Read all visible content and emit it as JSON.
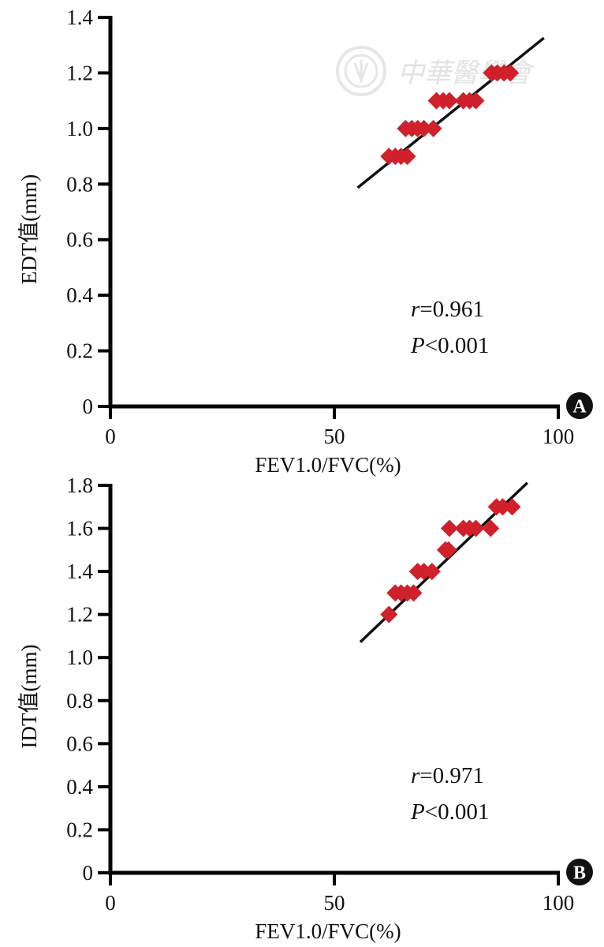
{
  "watermark": {
    "text": "中華醫學會",
    "icon": "seal-icon"
  },
  "colors": {
    "marker": "#d0202b",
    "line": "#111111",
    "axis": "#000000"
  },
  "chart_data": [
    {
      "type": "scatter",
      "panel_label": "A",
      "xlabel": "FEV1.0/FVC(%)",
      "ylabel": "EDT值(mm)",
      "xlim": [
        0,
        100
      ],
      "ylim": [
        0,
        1.4
      ],
      "x_ticks": [
        "0",
        "50",
        "100"
      ],
      "y_ticks": [
        "0",
        "0.2",
        "0.4",
        "0.6",
        "0.8",
        "1.0",
        "1.2",
        "1.4"
      ],
      "stats": {
        "r_symbol": "r",
        "r_value": "=0.961",
        "p_symbol": "P",
        "p_value": "<0.001"
      },
      "points": [
        {
          "x": 62.2,
          "y": 0.9
        },
        {
          "x": 63.6,
          "y": 0.9
        },
        {
          "x": 64.9,
          "y": 0.9
        },
        {
          "x": 66.3,
          "y": 0.9
        },
        {
          "x": 65.9,
          "y": 1.0
        },
        {
          "x": 67.3,
          "y": 1.0
        },
        {
          "x": 68.6,
          "y": 1.0
        },
        {
          "x": 70.0,
          "y": 1.0
        },
        {
          "x": 72.1,
          "y": 1.0
        },
        {
          "x": 72.8,
          "y": 1.1
        },
        {
          "x": 74.3,
          "y": 1.1
        },
        {
          "x": 75.7,
          "y": 1.1
        },
        {
          "x": 78.8,
          "y": 1.1
        },
        {
          "x": 80.2,
          "y": 1.1
        },
        {
          "x": 81.6,
          "y": 1.1
        },
        {
          "x": 85.1,
          "y": 1.2
        },
        {
          "x": 86.4,
          "y": 1.2
        },
        {
          "x": 87.9,
          "y": 1.2
        },
        {
          "x": 89.3,
          "y": 1.2
        }
      ],
      "fit_line": {
        "x": [
          55.2,
          96.8
        ],
        "y": [
          0.787,
          1.326
        ]
      }
    },
    {
      "type": "scatter",
      "panel_label": "B",
      "xlabel": "FEV1.0/FVC(%)",
      "ylabel": "IDT值(mm)",
      "xlim": [
        0,
        100
      ],
      "ylim": [
        0,
        1.8
      ],
      "x_ticks": [
        "0",
        "50",
        "100"
      ],
      "y_ticks": [
        "0",
        "0.2",
        "0.4",
        "0.6",
        "0.8",
        "1.0",
        "1.2",
        "1.4",
        "1.6",
        "1.8"
      ],
      "stats": {
        "r_symbol": "r",
        "r_value": "=0.971",
        "p_symbol": "P",
        "p_value": "<0.001"
      },
      "points": [
        {
          "x": 62.2,
          "y": 1.2
        },
        {
          "x": 63.6,
          "y": 1.3
        },
        {
          "x": 64.9,
          "y": 1.3
        },
        {
          "x": 66.3,
          "y": 1.3
        },
        {
          "x": 67.7,
          "y": 1.3
        },
        {
          "x": 68.6,
          "y": 1.4
        },
        {
          "x": 70.0,
          "y": 1.4
        },
        {
          "x": 71.8,
          "y": 1.4
        },
        {
          "x": 74.8,
          "y": 1.5
        },
        {
          "x": 75.5,
          "y": 1.5
        },
        {
          "x": 75.7,
          "y": 1.6
        },
        {
          "x": 78.8,
          "y": 1.6
        },
        {
          "x": 80.2,
          "y": 1.6
        },
        {
          "x": 81.6,
          "y": 1.6
        },
        {
          "x": 84.9,
          "y": 1.6
        },
        {
          "x": 86.2,
          "y": 1.7
        },
        {
          "x": 87.6,
          "y": 1.7
        },
        {
          "x": 89.7,
          "y": 1.7
        }
      ],
      "fit_line": {
        "x": [
          55.8,
          93.1
        ],
        "y": [
          1.072,
          1.812
        ]
      }
    }
  ]
}
